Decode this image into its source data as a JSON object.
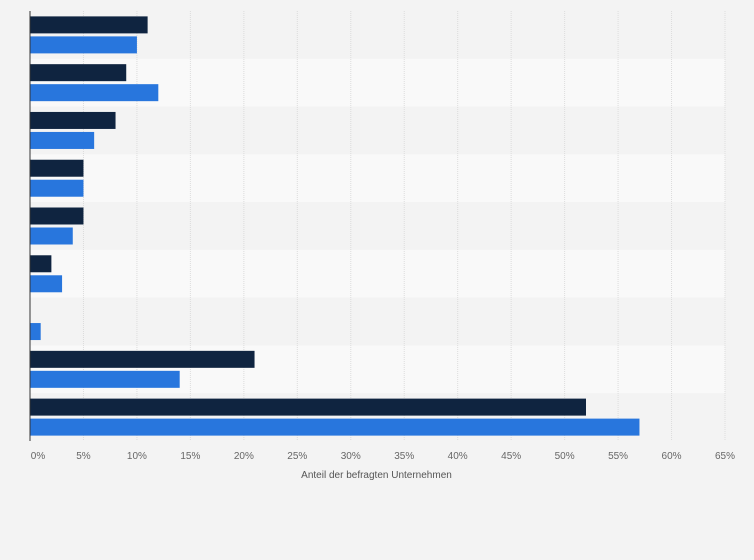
{
  "chart_data": {
    "type": "bar",
    "orientation": "horizontal",
    "categories": [
      "",
      "",
      "",
      "",
      "",
      "",
      "",
      "",
      ""
    ],
    "series": [
      {
        "values": [
          11,
          9,
          8,
          5,
          5,
          2,
          0,
          21,
          52
        ]
      },
      {
        "values": [
          10,
          12,
          6,
          5,
          4,
          3,
          1,
          14,
          57
        ]
      }
    ],
    "colors": [
      "#0f2440",
      "#2876dd"
    ],
    "xlim": [
      0,
      65
    ],
    "xticks": [
      "0%",
      "5%",
      "10%",
      "15%",
      "20%",
      "25%",
      "30%",
      "35%",
      "40%",
      "45%",
      "50%",
      "55%",
      "60%",
      "65%"
    ],
    "xlabel": "Anteil der befragten Unternehmen",
    "grid": true,
    "legend": "none"
  }
}
